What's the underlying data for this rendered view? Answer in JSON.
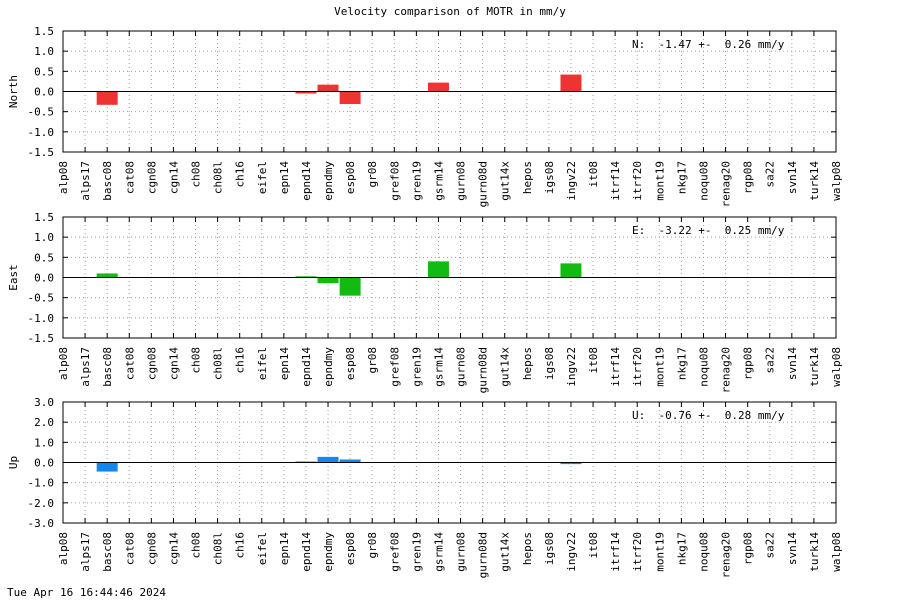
{
  "title": "Velocity comparison of MOTR in mm/y",
  "timestamp": "Tue Apr 16 16:44:46 2024",
  "chart_data": [
    {
      "type": "bar",
      "ylabel": "North",
      "annotation": "N:  -1.47 +-  0.26 mm/y",
      "color": "#ee3333",
      "ylim": [
        -1.5,
        1.5
      ],
      "yticks": [
        "1.5",
        "1.0",
        "0.5",
        "0.0",
        "-0.5",
        "-1.0",
        "-1.5"
      ],
      "grid": true,
      "categories": [
        "alp08",
        "alps17",
        "basc08",
        "cat08",
        "cgn08",
        "cgn14",
        "ch08",
        "ch08l",
        "ch16",
        "eifel",
        "epn14",
        "epnd14",
        "epndmy",
        "esp08",
        "gr08",
        "gref08",
        "gren19",
        "gsrm14",
        "gurn08",
        "gurn08d",
        "gut14x",
        "hepos",
        "igs08",
        "ingv22",
        "it08",
        "itrf14",
        "itrf20",
        "mont19",
        "nkg17",
        "noqu08",
        "renag20",
        "rgp08",
        "sa22",
        "svn14",
        "turk14",
        "walp08"
      ],
      "values": [
        0,
        0,
        -0.33,
        0,
        0,
        0,
        0,
        0,
        0,
        0,
        0,
        -0.05,
        0.17,
        -0.31,
        0,
        0,
        0,
        0.22,
        0,
        0,
        0,
        0,
        0,
        0.42,
        0,
        0,
        0,
        0,
        0,
        0,
        0,
        0,
        0,
        0,
        0,
        0
      ]
    },
    {
      "type": "bar",
      "ylabel": "East",
      "annotation": "E:  -3.22 +-  0.25 mm/y",
      "color": "#11bb11",
      "ylim": [
        -1.5,
        1.5
      ],
      "yticks": [
        "1.5",
        "1.0",
        "0.5",
        "0.0",
        "-0.5",
        "-1.0",
        "-1.5"
      ],
      "grid": true,
      "categories": [
        "alp08",
        "alps17",
        "basc08",
        "cat08",
        "cgn08",
        "cgn14",
        "ch08",
        "ch08l",
        "ch16",
        "eifel",
        "epn14",
        "epnd14",
        "epndmy",
        "esp08",
        "gr08",
        "gref08",
        "gren19",
        "gsrm14",
        "gurn08",
        "gurn08d",
        "gut14x",
        "hepos",
        "igs08",
        "ingv22",
        "it08",
        "itrf14",
        "itrf20",
        "mont19",
        "nkg17",
        "noqu08",
        "renag20",
        "rgp08",
        "sa22",
        "svn14",
        "turk14",
        "walp08"
      ],
      "values": [
        0,
        0,
        0.1,
        0,
        0,
        0,
        0,
        0,
        0,
        0,
        0,
        0.03,
        -0.14,
        -0.45,
        0,
        0,
        0,
        0.4,
        0,
        0,
        0,
        0,
        0,
        0.35,
        0,
        0,
        0,
        0,
        0,
        0,
        0,
        0,
        0,
        0,
        0,
        0
      ]
    },
    {
      "type": "bar",
      "ylabel": "Up",
      "annotation": "U:  -0.76 +-  0.28 mm/y",
      "color": "#1188ee",
      "ylim": [
        -3.0,
        3.0
      ],
      "yticks": [
        "3.0",
        "2.0",
        "1.0",
        "0.0",
        "-1.0",
        "-2.0",
        "-3.0"
      ],
      "grid": true,
      "categories": [
        "alp08",
        "alps17",
        "basc08",
        "cat08",
        "cgn08",
        "cgn14",
        "ch08",
        "ch08l",
        "ch16",
        "eifel",
        "epn14",
        "epnd14",
        "epndmy",
        "esp08",
        "gr08",
        "gref08",
        "gren19",
        "gsrm14",
        "gurn08",
        "gurn08d",
        "gut14x",
        "hepos",
        "igs08",
        "ingv22",
        "it08",
        "itrf14",
        "itrf20",
        "mont19",
        "nkg17",
        "noqu08",
        "renag20",
        "rgp08",
        "sa22",
        "svn14",
        "turk14",
        "walp08"
      ],
      "values": [
        0,
        0,
        -0.45,
        0,
        0,
        0,
        0,
        0,
        0,
        0,
        0,
        0.05,
        0.28,
        0.15,
        0,
        0,
        0,
        0,
        0,
        0,
        0,
        0,
        0,
        -0.08,
        0,
        0,
        0,
        0,
        0,
        0,
        0,
        0,
        0,
        0,
        0,
        0
      ]
    }
  ]
}
